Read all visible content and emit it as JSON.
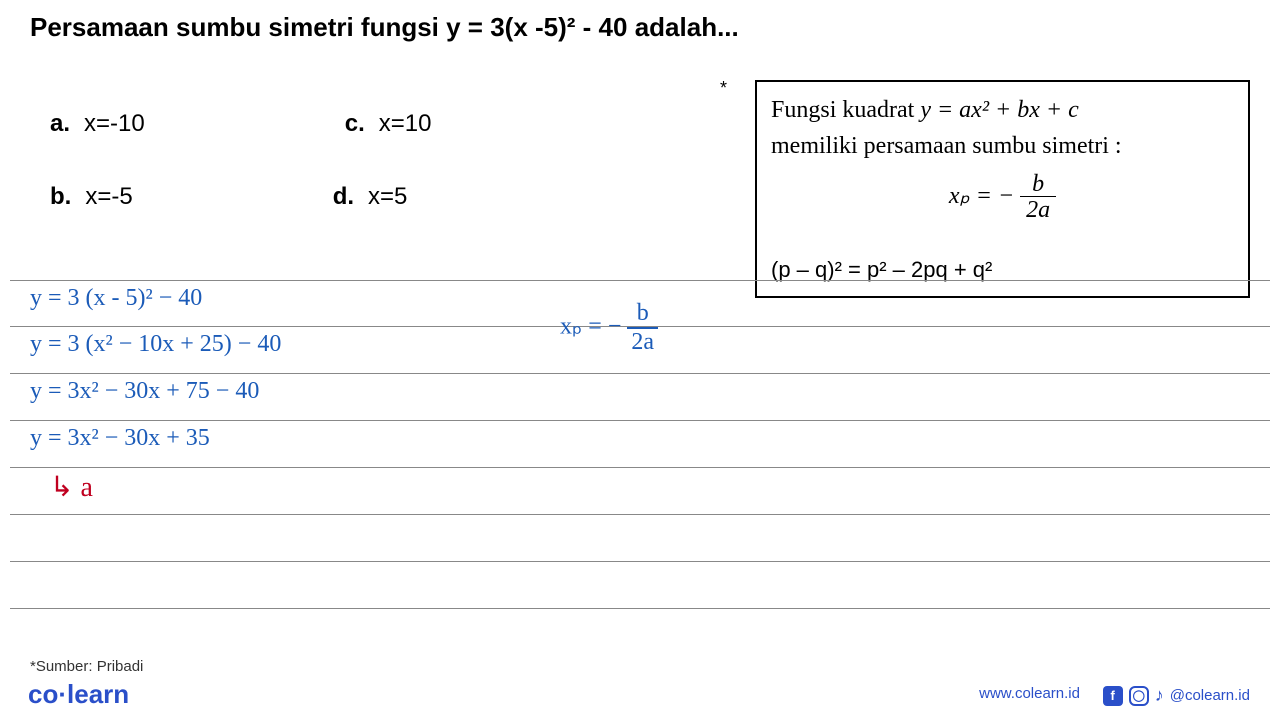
{
  "title": "Persamaan sumbu simetri fungsi y = 3(x -5)² - 40 adalah...",
  "options": {
    "a": {
      "letter": "a.",
      "text": "x=-10"
    },
    "b": {
      "letter": "b.",
      "text": "x=-5"
    },
    "c": {
      "letter": "c.",
      "text": "x=10"
    },
    "d": {
      "letter": "d.",
      "text": "x=5"
    }
  },
  "hint": {
    "star": "*",
    "line1_pre": "Fungsi kuadrat ",
    "line1_eq": "y = ax² + bx + c",
    "line2": "memiliki persamaan sumbu simetri :",
    "formula_lhs": "xₚ = − ",
    "formula_num": "b",
    "formula_den": "2a",
    "identity": "(p – q)² = p² – 2pq + q²"
  },
  "handwriting": {
    "line1": "y = 3 (x - 5)² − 40",
    "line2": "y = 3 (x² − 10x + 25) − 40",
    "line3": "y = 3x² − 30x + 75 − 40",
    "line4": "y = 3x² − 30x + 35",
    "arrow": "↳",
    "arrow_val": "a",
    "right_lhs": "xₚ = − ",
    "right_num": "b",
    "right_den": "2a"
  },
  "colors": {
    "blue": "#1b5bb8",
    "red": "#c00020",
    "brand": "#2a4fc9",
    "text": "#000000",
    "rule": "#888888"
  },
  "footer": {
    "source": "*Sumber: Pribadi",
    "logo_a": "co",
    "logo_b": "·",
    "logo_c": "learn",
    "url": "www.colearn.id",
    "handle": "@colearn.id"
  }
}
